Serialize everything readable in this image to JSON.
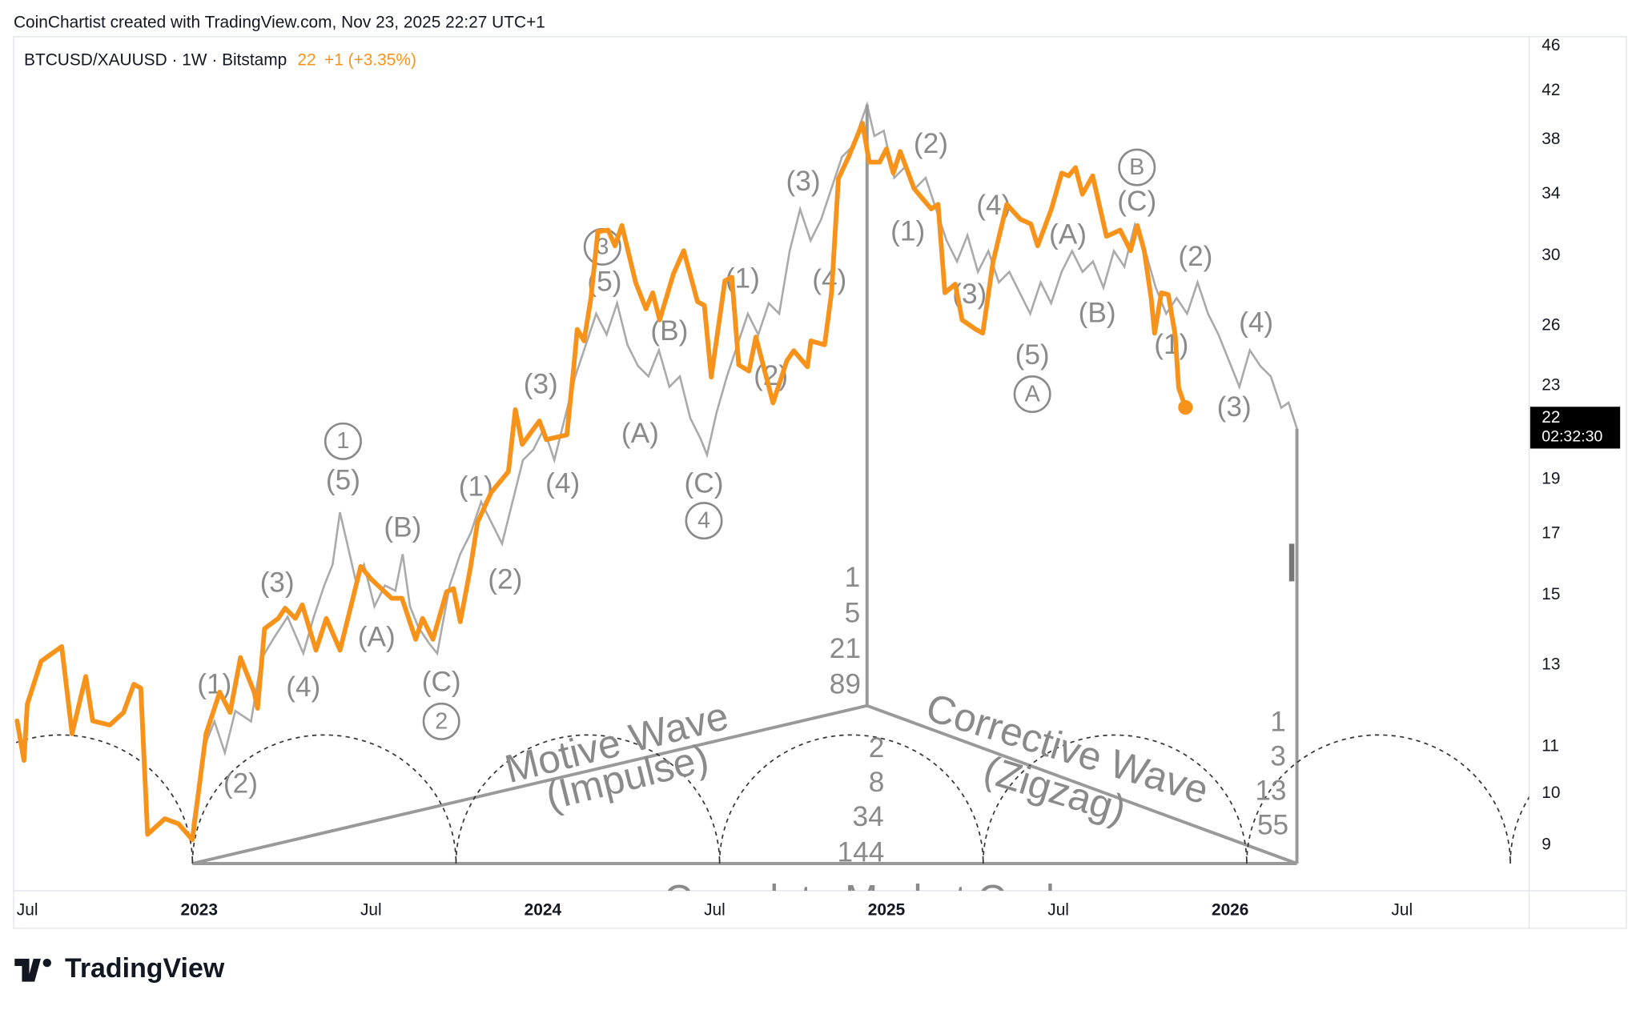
{
  "header": "CoinChartist created with TradingView.com, Nov 23, 2025 22:27 UTC+1",
  "branding": "TradingView",
  "chart_data": {
    "type": "line",
    "series": [
      {
        "name": "BTCUSD/XAUUSD · 1W · Bitstamp",
        "color": "#f7931a",
        "values": [
          11.6,
          10.7,
          12.0,
          13.1,
          13.5,
          11.3,
          12.7,
          11.6,
          11.5,
          11.8,
          12.5,
          12.4,
          9.2,
          9.5,
          9.4,
          9.1,
          11.3,
          12.3,
          11.8,
          13.2,
          12.3,
          11.9,
          14.0,
          14.3,
          14.6,
          14.3,
          14.7,
          13.4,
          14.3,
          13.4,
          15.9,
          15.5,
          14.9,
          14.9,
          13.7,
          14.3,
          13.7,
          15.1,
          15.2,
          14.2,
          15.9,
          17.4,
          18.5,
          19.3,
          21.9,
          20.4,
          21.4,
          20.6,
          20.8,
          23.9,
          25.8,
          25.2,
          27.5,
          31.5,
          31.6,
          30.6,
          31.9,
          28.4,
          26.9,
          27.8,
          26.3,
          28.9,
          30.3,
          27.3,
          27.1,
          23.4,
          28.5,
          28.7,
          24.0,
          23.7,
          25.4,
          22.2,
          24.2,
          24.7,
          23.9,
          25.2,
          25.0,
          27.8,
          35.1,
          36.7,
          39.3,
          36.3,
          36.3,
          37.3,
          35.5,
          37.1,
          34.4,
          33.0,
          33.3,
          27.8,
          28.3,
          26.3,
          25.8,
          25.6,
          29.6,
          33.3,
          32.3,
          32.0,
          30.6,
          33.0,
          35.5,
          35.3,
          35.9,
          34.0,
          35.3,
          31.2,
          31.6,
          30.3,
          31.9,
          30.3,
          27.5,
          25.6,
          27.8,
          27.7,
          25.5,
          22.9,
          22
        ]
      }
    ],
    "x": [
      2022.47,
      2022.49,
      2022.5,
      2022.54,
      2022.6,
      2022.63,
      2022.67,
      2022.69,
      2022.74,
      2022.78,
      2022.81,
      2022.83,
      2022.85,
      2022.9,
      2022.94,
      2022.98,
      2023.02,
      2023.06,
      2023.09,
      2023.12,
      2023.16,
      2023.17,
      2023.19,
      2023.23,
      2023.25,
      2023.28,
      2023.3,
      2023.34,
      2023.37,
      2023.41,
      2023.47,
      2023.5,
      2023.56,
      2023.59,
      2023.63,
      2023.65,
      2023.68,
      2023.72,
      2023.74,
      2023.76,
      2023.79,
      2023.81,
      2023.85,
      2023.9,
      2023.92,
      2023.94,
      2023.99,
      2024.01,
      2024.07,
      2024.09,
      2024.1,
      2024.12,
      2024.14,
      2024.16,
      2024.19,
      2024.21,
      2024.23,
      2024.27,
      2024.3,
      2024.32,
      2024.34,
      2024.38,
      2024.41,
      2024.45,
      2024.47,
      2024.49,
      2024.53,
      2024.55,
      2024.57,
      2024.6,
      2024.62,
      2024.67,
      2024.71,
      2024.73,
      2024.77,
      2024.78,
      2024.82,
      2024.84,
      2024.86,
      2024.89,
      2024.93,
      2024.95,
      2024.98,
      2025.0,
      2025.02,
      2025.04,
      2025.08,
      2025.13,
      2025.15,
      2025.17,
      2025.2,
      2025.22,
      2025.26,
      2025.28,
      2025.31,
      2025.35,
      2025.39,
      2025.42,
      2025.44,
      2025.48,
      2025.51,
      2025.53,
      2025.55,
      2025.57,
      2025.6,
      2025.64,
      2025.68,
      2025.71,
      2025.73,
      2025.75,
      2025.77,
      2025.78,
      2025.8,
      2025.82,
      2025.84,
      2025.85,
      2025.87
    ],
    "change": "+1 (+3.35%)",
    "countdown": "02:32:30",
    "xlim": [
      2022.46,
      2026.87
    ],
    "xticks": [
      {
        "value": 2022.5,
        "label": "Jul"
      },
      2023,
      {
        "value": 2023.5,
        "label": "Jul"
      },
      2024,
      {
        "value": 2024.5,
        "label": "Jul"
      },
      2025,
      {
        "value": 2025.5,
        "label": "Jul"
      },
      2026,
      {
        "value": 2026.5,
        "label": "Jul"
      }
    ],
    "ylim": [
      8.2,
      46.9
    ],
    "yticks": [
      9,
      10,
      11,
      13,
      15,
      17,
      19,
      23,
      26,
      30,
      34,
      38,
      42,
      46
    ],
    "yscale": "log",
    "grid": false,
    "annotations": [
      "(1)",
      "(2)",
      "(3)",
      "(4)",
      "(5)",
      "1",
      "(B)",
      "(A)",
      "(C)",
      "2",
      "(1)",
      "(2)",
      "(3)",
      "(4)",
      "3",
      "(5)",
      "(B)",
      "(A)",
      "(C)",
      "4",
      "(1)",
      "(2)",
      "(3)",
      "(4)",
      "(2)",
      "(1)",
      "(4)",
      "(3)",
      "(5)",
      "A",
      "(A)",
      "(B)",
      "B",
      "(C)",
      "(2)",
      "(1)",
      "(4)",
      "(3)",
      "1",
      "5",
      "21",
      "89",
      "2",
      "8",
      "34",
      "144",
      "1",
      "3",
      "13",
      "55",
      "Motive Wave",
      "(Impulse)",
      "Corrective Wave",
      "(Zigzag)",
      "Complete Market Cycle"
    ]
  }
}
